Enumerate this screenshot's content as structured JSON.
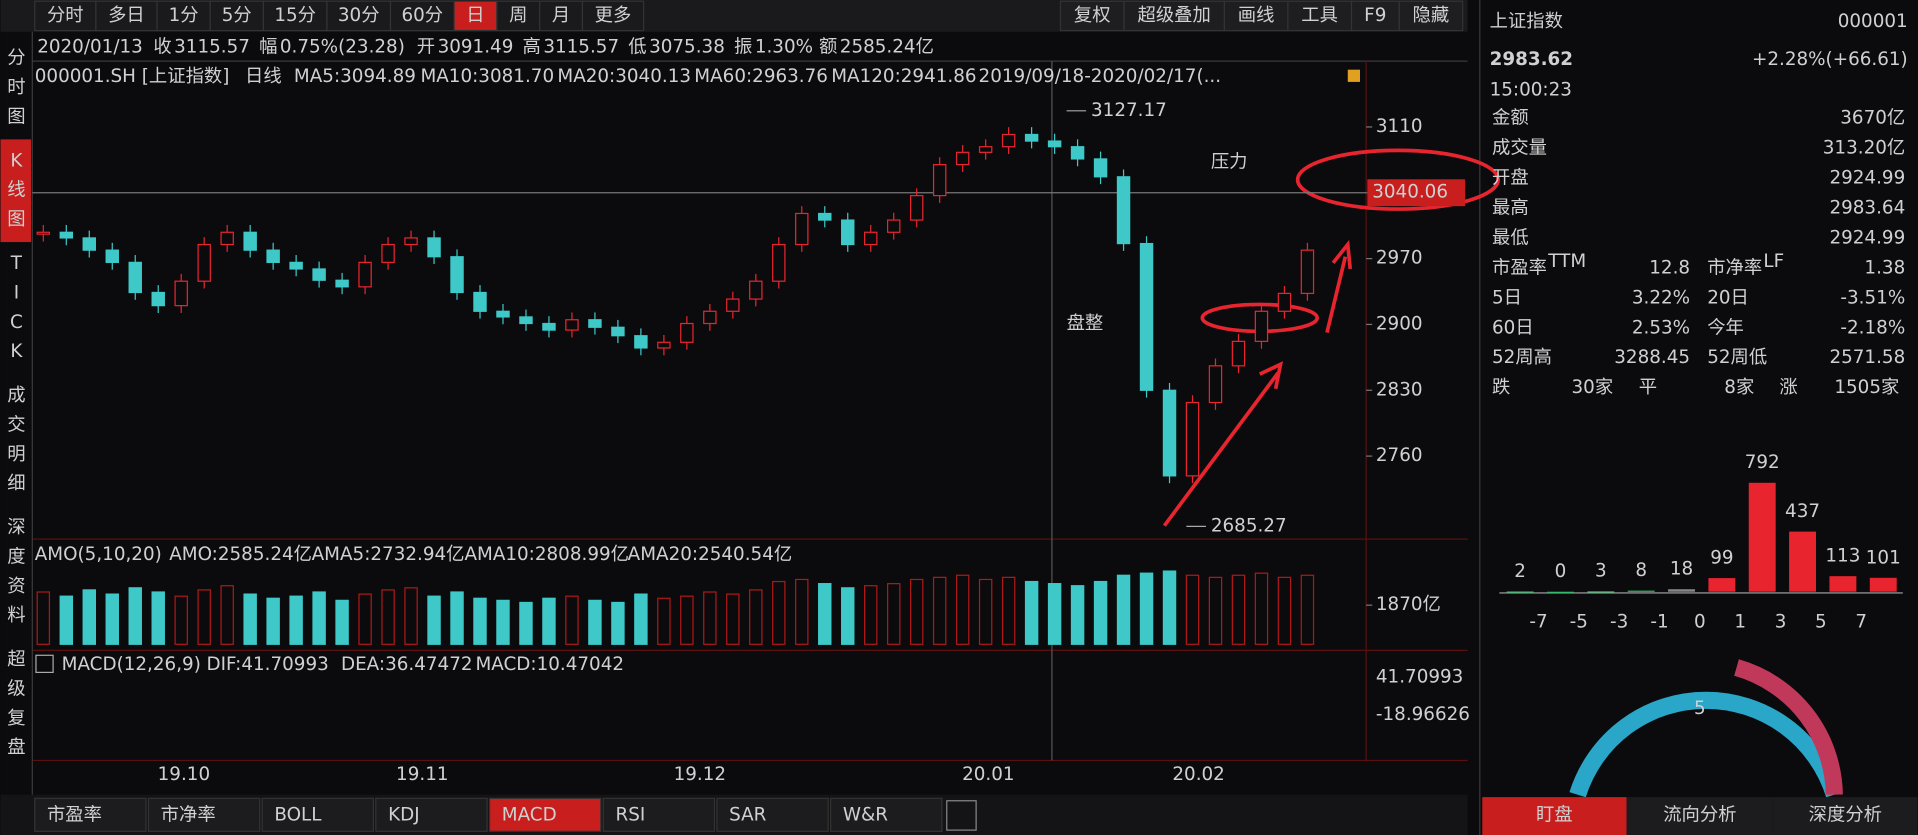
{
  "period_tabs": [
    "分时",
    "多日",
    "1分",
    "5分",
    "15分",
    "30分",
    "60分",
    "日",
    "周",
    "月",
    "更多"
  ],
  "toolbar_right": [
    "复权",
    "超级叠加",
    "画线",
    "工具",
    "F9",
    "隐藏"
  ],
  "side_tabs": [
    "分时图",
    "K线图",
    "TICK",
    "成交明细",
    "深度资料",
    "超级复盘"
  ],
  "info_bar": [
    "2020/01/13",
    "收",
    "3115.57",
    "幅",
    "0.75%(23.28)",
    "开",
    "3091.49",
    "高",
    "3115.57",
    "低",
    "3075.38",
    "振",
    "1.30%",
    "额",
    "2585.24亿"
  ],
  "ma_bar": [
    "000001.SH [上证指数]",
    "日线",
    "MA5:3094.89",
    "MA10:3081.70",
    "MA20:3040.13",
    "MA60:2963.76",
    "MA120:2941.86",
    "2019/09/18-2020/02/17(..."
  ],
  "chart_data": {
    "type": "candlestick",
    "closes": [
      2998,
      2992,
      2979,
      2966,
      2934,
      2920,
      2946,
      2985,
      2998,
      2979,
      2966,
      2959,
      2947,
      2940,
      2966,
      2985,
      2992,
      2972,
      2934,
      2914,
      2908,
      2901,
      2894,
      2905,
      2897,
      2888,
      2875,
      2881,
      2901,
      2914,
      2927,
      2946,
      2985,
      3018,
      3011,
      2985,
      2998,
      3011,
      3037,
      3070,
      3083,
      3089,
      3102,
      3095,
      3089,
      3076,
      3057,
      2986,
      2830,
      2739,
      2817,
      2856,
      2882,
      2914,
      2933,
      2979
    ],
    "ylim": [
      2673,
      3180
    ],
    "yticks": [
      3110,
      3040,
      2970,
      2900,
      2830,
      2760
    ],
    "ma20_marker": 3040.06,
    "high_label": 3127.17,
    "low_label": 2685.27,
    "x_labels": [
      "19.10",
      "19.11",
      "19.12",
      "20.01",
      "20.02"
    ],
    "annotations": [
      "压力",
      "盘整"
    ],
    "volume": {
      "title": [
        "AMO(5,10,20)",
        "AMO:2585.24亿",
        "AMA5:2732.94亿",
        "AMA10:2808.99亿",
        "AMA20:2540.54亿"
      ],
      "axis_label": "1870亿",
      "axis_value": 1870,
      "ylim": [
        0,
        3800
      ],
      "values": [
        2500,
        2300,
        2600,
        2400,
        2700,
        2500,
        2300,
        2600,
        2800,
        2400,
        2200,
        2300,
        2500,
        2100,
        2400,
        2600,
        2700,
        2300,
        2500,
        2200,
        2100,
        2000,
        2200,
        2300,
        2100,
        2000,
        2400,
        2200,
        2300,
        2500,
        2400,
        2600,
        3000,
        3100,
        2900,
        2700,
        2800,
        2900,
        3100,
        3200,
        3300,
        3100,
        3200,
        3000,
        2900,
        2800,
        3000,
        3300,
        3400,
        3500,
        3300,
        3200,
        3300,
        3400,
        3200,
        3300
      ]
    },
    "macd": {
      "title": [
        "MACD(12,26,9)",
        "DIF:41.70993",
        "DEA:36.47472",
        "MACD:10.47042"
      ],
      "axis_labels": [
        "41.70993",
        "-18.96626"
      ]
    }
  },
  "bottom_tabs": [
    "市盈率",
    "市净率",
    "BOLL",
    "KDJ",
    "MACD",
    "RSI",
    "SAR",
    "W&R"
  ],
  "quote": {
    "name": "上证指数",
    "code": "000001",
    "price": "2983.62",
    "change": "+2.28%(+66.61)",
    "time": "15:00:23",
    "rows": [
      [
        "金额",
        "3670亿"
      ],
      [
        "成交量",
        "313.20亿"
      ],
      [
        "开盘",
        "2924.99"
      ],
      [
        "最高",
        "2983.64"
      ],
      [
        "最低",
        "2924.99"
      ]
    ],
    "pairs": [
      [
        [
          "市盈率",
          "TTM",
          "12.8"
        ],
        [
          "市净率",
          "LF",
          "1.38"
        ]
      ],
      [
        [
          "5日",
          "",
          "3.22%"
        ],
        [
          "20日",
          "",
          "-3.51%"
        ]
      ],
      [
        [
          "60日",
          "",
          "2.53%"
        ],
        [
          "今年",
          "",
          "-2.18%"
        ]
      ],
      [
        [
          "52周高",
          "",
          "3288.45"
        ],
        [
          "52周低",
          "",
          "2571.58"
        ]
      ]
    ],
    "breadth": [
      "跌",
      "30家",
      "平",
      "8家",
      "涨",
      "1505家"
    ]
  },
  "distribution": {
    "type": "bar",
    "values": [
      2,
      0,
      3,
      8,
      18,
      99,
      792,
      437,
      113,
      101
    ],
    "colors": [
      "#2fb865",
      "#2fb865",
      "#2fb865",
      "#2fb865",
      "#888888",
      "#e8252f",
      "#e8252f",
      "#e8252f",
      "#e8252f",
      "#e8252f"
    ],
    "ylim": [
      0,
      800
    ],
    "axis_labels": [
      "-7",
      "-5",
      "-3",
      "-1",
      "0",
      "1",
      "3",
      "5",
      "7"
    ]
  },
  "gauge": {
    "value_text": "5"
  },
  "panel_tabs": [
    "盯盘",
    "流向分析",
    "深度分析"
  ]
}
